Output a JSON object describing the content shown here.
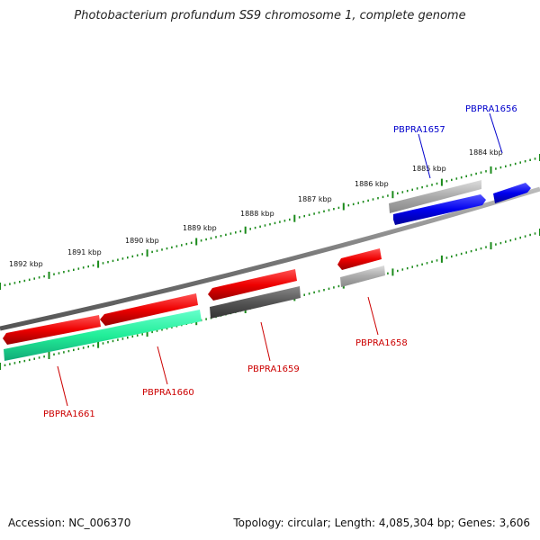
{
  "title": "Photobacterium profundum SS9 chromosome 1, complete genome",
  "footer": {
    "accession": "Accession: NC_006370",
    "summary": "Topology: circular; Length: 4,085,304 bp; Genes: 3,606"
  },
  "colors": {
    "backbone": "#808080",
    "tick": "#1a8a1a",
    "forward_label": "#0000cc",
    "reverse_label": "#cc0000"
  },
  "scale_labels": [
    "1892 kbp",
    "1891 kbp",
    "1890 kbp",
    "1889 kbp",
    "1888 kbp",
    "1887 kbp",
    "1886 kbp",
    "1885 kbp",
    "1884 kbp"
  ],
  "genes": [
    {
      "name": "PBPRA1656",
      "strand": "forward",
      "color": "#0000ee"
    },
    {
      "name": "PBPRA1657",
      "strand": "forward",
      "color": "#0000ee"
    },
    {
      "name": "PBPRA1658",
      "strand": "reverse",
      "color": "#ee0000"
    },
    {
      "name": "PBPRA1659",
      "strand": "reverse",
      "color": "#ee0000"
    },
    {
      "name": "PBPRA1660",
      "strand": "reverse",
      "color": "#ee0000"
    },
    {
      "name": "PBPRA1661",
      "strand": "reverse",
      "color": "#ee0000"
    }
  ]
}
